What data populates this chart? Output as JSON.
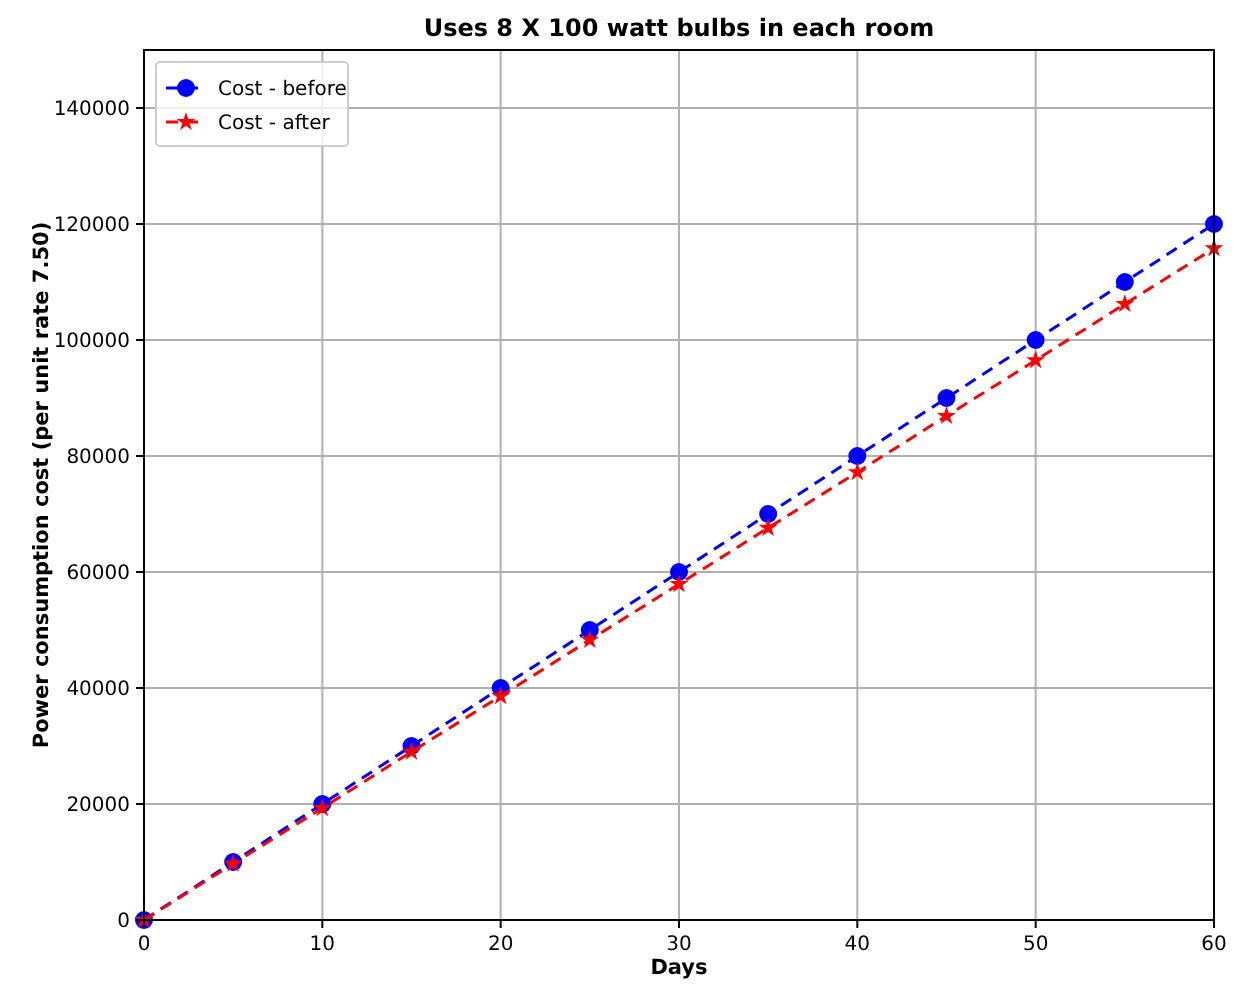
{
  "chart_data": {
    "type": "line",
    "title": "Uses 8 X 100 watt bulbs in each room",
    "xlabel": "Days",
    "ylabel": "Power consumption cost (per unit rate 7.50)",
    "x": [
      0,
      5,
      10,
      15,
      20,
      25,
      30,
      35,
      40,
      45,
      50,
      55,
      60
    ],
    "series": [
      {
        "name": "Cost - before",
        "color": "#0000ff",
        "marker": "circle",
        "values": [
          0,
          10000,
          20000,
          30000,
          40000,
          50000,
          60000,
          70000,
          80000,
          90000,
          100000,
          110000,
          120000
        ]
      },
      {
        "name": "Cost - after",
        "color": "#ff0000",
        "marker": "star",
        "values": [
          0,
          9700,
          19300,
          29000,
          38600,
          48300,
          57900,
          67600,
          77200,
          86900,
          96500,
          106200,
          115800
        ]
      }
    ],
    "xlim": [
      0,
      60
    ],
    "xticks": [
      0,
      10,
      20,
      30,
      40,
      50,
      60
    ],
    "ylim": [
      0,
      150000
    ],
    "yticks": [
      0,
      20000,
      40000,
      60000,
      80000,
      100000,
      120000,
      140000
    ],
    "grid": true,
    "legend": "top left",
    "line_style": "dashed"
  }
}
